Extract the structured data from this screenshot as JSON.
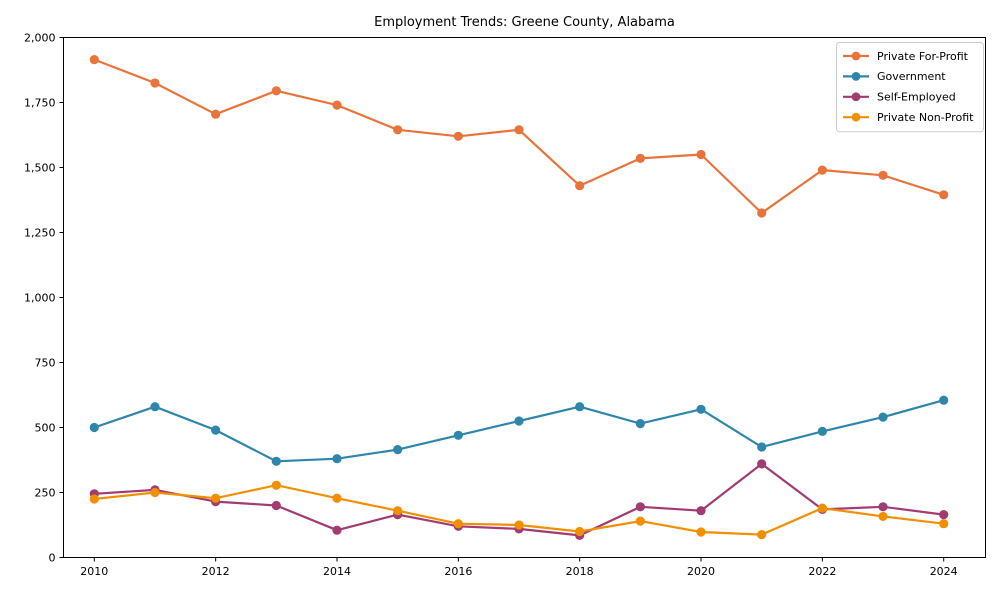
{
  "chart_data": {
    "type": "line",
    "title": "Employment Trends: Greene County, Alabama",
    "x": [
      2010,
      2011,
      2012,
      2013,
      2014,
      2015,
      2016,
      2017,
      2018,
      2019,
      2020,
      2021,
      2022,
      2023,
      2024
    ],
    "series": [
      {
        "name": "Private For-Profit",
        "color": "#E8743B",
        "values": [
          1915,
          1825,
          1705,
          1795,
          1740,
          1645,
          1620,
          1645,
          1430,
          1535,
          1550,
          1325,
          1490,
          1470,
          1395
        ]
      },
      {
        "name": "Government",
        "color": "#2E86AB",
        "values": [
          500,
          580,
          490,
          370,
          380,
          415,
          470,
          525,
          580,
          515,
          570,
          425,
          485,
          540,
          605
        ]
      },
      {
        "name": "Self-Employed",
        "color": "#A23B72",
        "values": [
          245,
          260,
          215,
          200,
          105,
          165,
          120,
          110,
          85,
          195,
          180,
          360,
          185,
          195,
          165
        ]
      },
      {
        "name": "Private Non-Profit",
        "color": "#F18F01",
        "values": [
          225,
          250,
          228,
          278,
          228,
          180,
          130,
          125,
          100,
          140,
          98,
          88,
          190,
          158,
          130
        ]
      }
    ],
    "xlabel": "",
    "ylabel": "",
    "xlim": [
      2009.5,
      2024.7
    ],
    "ylim": [
      0,
      2000
    ],
    "xticks": [
      2010,
      2012,
      2014,
      2016,
      2018,
      2020,
      2022,
      2024
    ],
    "xtick_labels": [
      "2010",
      "2012",
      "2014",
      "2016",
      "2018",
      "2020",
      "2022",
      "2024"
    ],
    "yticks": [
      0,
      250,
      500,
      750,
      1000,
      1250,
      1500,
      1750,
      2000
    ],
    "ytick_labels": [
      "0",
      "250",
      "500",
      "750",
      "1,000",
      "1,250",
      "1,500",
      "1,750",
      "2,000"
    ],
    "grid": false,
    "legend_position": "top-right",
    "axis_color": "#000000",
    "legend_border_color": "#cccccc",
    "background_color": "#ffffff"
  }
}
